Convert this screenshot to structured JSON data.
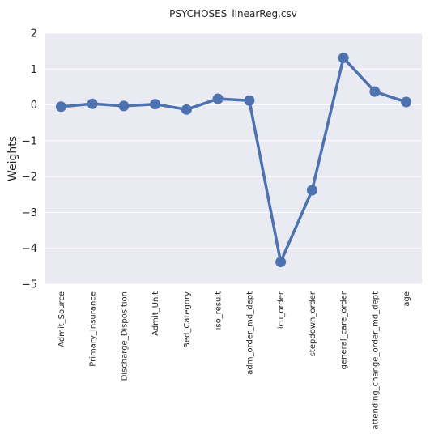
{
  "chart_data": {
    "type": "line",
    "title": "PSYCHOSES_linearReg.csv",
    "xlabel": "",
    "ylabel": "Weights",
    "ylim": [
      -5,
      2
    ],
    "yticks": [
      2,
      1,
      0,
      -1,
      -2,
      -3,
      -4,
      -5
    ],
    "grid": true,
    "categories": [
      "Admit_Source",
      "Primary_Insurance",
      "Discharge_Disposition",
      "Admit_Unit",
      "Bed_Category",
      "iso_result",
      "adm_order_md_dept",
      "icu_order",
      "stepdown_order",
      "general_care_order",
      "attending_change_order_md_dept",
      "age"
    ],
    "values": [
      -0.05,
      0.03,
      -0.03,
      0.02,
      -0.13,
      0.17,
      0.12,
      -4.38,
      -2.38,
      1.31,
      0.37,
      0.08
    ],
    "colors": {
      "line": "#4c72b0",
      "background": "#eaeaf2",
      "grid": "#ffffff"
    }
  }
}
